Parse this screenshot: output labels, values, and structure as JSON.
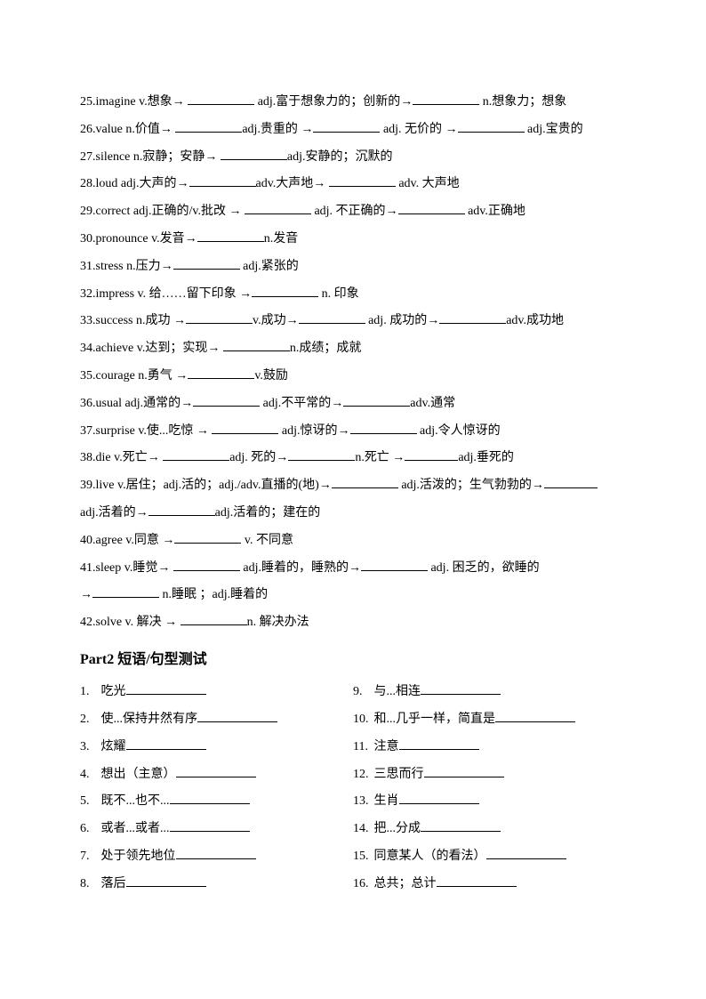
{
  "part1": {
    "items": [
      {
        "n": "25",
        "segs": [
          "imagine v.想象→ ",
          "blank-m",
          " adj.富于想象力的；创新的→",
          "blank-m",
          " n.想象力；想象"
        ]
      },
      {
        "n": "26",
        "segs": [
          "value n.价值→ ",
          "blank-m",
          "adj.贵重的 →",
          "blank-m",
          " adj. 无价的 →",
          "blank-m",
          " adj.宝贵的"
        ]
      },
      {
        "n": "27",
        "segs": [
          "silence n.寂静；安静→ ",
          "blank-m",
          "adj.安静的；沉默的"
        ]
      },
      {
        "n": "28",
        "segs": [
          "loud adj.大声的→",
          "blank-m",
          "adv.大声地→ ",
          "blank-m",
          " adv. 大声地"
        ]
      },
      {
        "n": "29",
        "segs": [
          "correct adj.正确的/v.批改 → ",
          "blank-m",
          " adj. 不正确的→",
          "blank-m",
          " adv.正确地"
        ]
      },
      {
        "n": "30",
        "segs": [
          "pronounce v.发音→",
          "blank-m",
          "n.发音"
        ]
      },
      {
        "n": "31",
        "segs": [
          "stress n.压力→",
          "blank-m",
          " adj.紧张的"
        ]
      },
      {
        "n": "32",
        "segs": [
          "impress v. 给……留下印象 →",
          "blank-m",
          " n. 印象"
        ]
      },
      {
        "n": "33",
        "segs": [
          "success n.成功 →",
          "blank-m",
          "v.成功→",
          "blank-m",
          " adj. 成功的→",
          "blank-m",
          "adv.成功地"
        ]
      },
      {
        "n": "34",
        "segs": [
          "achieve v.达到；实现→ ",
          "blank-m",
          "n.成绩；成就"
        ]
      },
      {
        "n": "35",
        "segs": [
          "courage n.勇气 →",
          "blank-m",
          "v.鼓励"
        ]
      },
      {
        "n": "36",
        "segs": [
          "usual adj.通常的→",
          "blank-m",
          " adj.不平常的→",
          "blank-m",
          "adv.通常"
        ]
      },
      {
        "n": "37",
        "segs": [
          "surprise v.使...吃惊 → ",
          "blank-m",
          " adj.惊讶的→",
          "blank-m",
          " adj.令人惊讶的"
        ]
      },
      {
        "n": "38",
        "segs": [
          "die v.死亡→ ",
          "blank-m",
          "adj. 死的→",
          "blank-m",
          "n.死亡 →",
          "blank-s",
          "adj.垂死的"
        ]
      },
      {
        "n": "39",
        "segs": [
          "live v.居住；adj.活的；adj./adv.直播的(地)→",
          "blank-m",
          " adj.活泼的；生气勃勃的→",
          "blank-s"
        ]
      },
      {
        "n": "",
        "segs": [
          "adj.活着的→",
          "blank-m",
          "adj.活着的；建在的"
        ]
      },
      {
        "n": "40",
        "segs": [
          "agree v.同意 →",
          "blank-m",
          " v. 不同意"
        ]
      },
      {
        "n": "41",
        "segs": [
          "sleep v.睡觉→ ",
          "blank-m",
          " adj.睡着的，睡熟的→",
          "blank-m",
          " adj. 困乏的，欲睡的"
        ]
      },
      {
        "n": "",
        "segs": [
          "→",
          "blank-m",
          " n.睡眠 ；adj.睡着的"
        ]
      },
      {
        "n": "42",
        "segs": [
          "solve  v. 解决 → ",
          "blank-m",
          "n. 解决办法"
        ]
      }
    ]
  },
  "part2": {
    "heading": "Part2 短语/句型测试",
    "left": [
      {
        "n": "1.",
        "t": "吃光"
      },
      {
        "n": "2.",
        "t": "使...保持井然有序"
      },
      {
        "n": "3.",
        "t": "炫耀"
      },
      {
        "n": "4.",
        "t": "想出（主意）"
      },
      {
        "n": "5.",
        "t": "既不...也不..."
      },
      {
        "n": "6.",
        "t": "或者...或者..."
      },
      {
        "n": "7.",
        "t": "处于领先地位"
      },
      {
        "n": "8.",
        "t": "落后"
      }
    ],
    "right": [
      {
        "n": "9.",
        "t": "与...相连"
      },
      {
        "n": "10.",
        "t": "和...几乎一样，简直是"
      },
      {
        "n": "11.",
        "t": "注意"
      },
      {
        "n": "12.",
        "t": "三思而行"
      },
      {
        "n": "13.",
        "t": "生肖"
      },
      {
        "n": "14.",
        "t": "把...分成"
      },
      {
        "n": "15.",
        "t": "同意某人（的看法）"
      },
      {
        "n": "16.",
        "t": "总共；总计"
      }
    ]
  }
}
